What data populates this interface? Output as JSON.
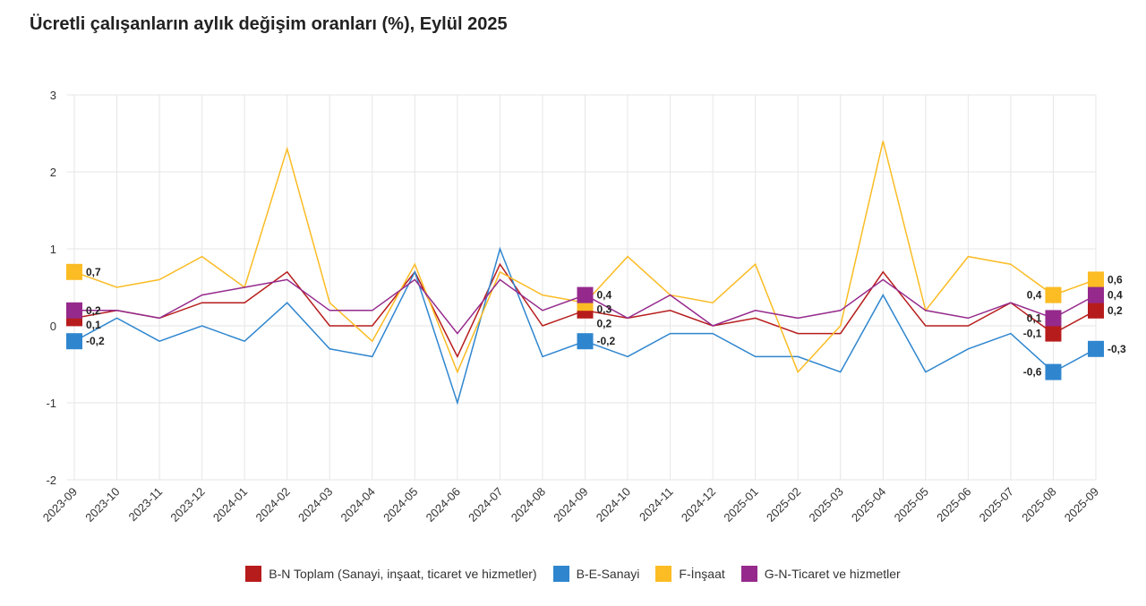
{
  "title": "Ücretli çalışanların aylık değişim oranları (%), Eylül 2025",
  "chart_data": {
    "type": "line",
    "title": "Ücretli çalışanların aylık değişim oranları (%), Eylül 2025",
    "x": [
      "2023-09",
      "2023-10",
      "2023-11",
      "2023-12",
      "2024-01",
      "2024-02",
      "2024-03",
      "2024-04",
      "2024-05",
      "2024-06",
      "2024-07",
      "2024-08",
      "2024-09",
      "2024-10",
      "2024-11",
      "2024-12",
      "2025-01",
      "2025-02",
      "2025-03",
      "2025-04",
      "2025-05",
      "2025-06",
      "2025-07",
      "2025-08",
      "2025-09"
    ],
    "ylim": [
      -2,
      3
    ],
    "yticks": [
      -2,
      -1,
      0,
      1,
      2,
      3
    ],
    "grid": true,
    "legend": "bottom",
    "labeled_points": [
      "2023-09",
      "2024-09",
      "2025-08",
      "2025-09"
    ],
    "series": [
      {
        "name": "B-N Toplam (Sanayi, inşaat, ticaret ve hizmetler)",
        "color": "#b71c1c",
        "values": [
          0.1,
          0.2,
          0.1,
          0.3,
          0.3,
          0.7,
          0,
          0,
          0.7,
          -0.4,
          0.8,
          0,
          0.2,
          0.1,
          0.2,
          0,
          0.1,
          -0.1,
          -0.1,
          0.7,
          0,
          0,
          0.3,
          -0.1,
          0.2
        ]
      },
      {
        "name": "B-E-Sanayi",
        "color": "#2f86cf",
        "values": [
          -0.2,
          0.1,
          -0.2,
          0,
          -0.2,
          0.3,
          -0.3,
          -0.4,
          0.7,
          -1.0,
          1.0,
          -0.4,
          -0.2,
          -0.4,
          -0.1,
          -0.1,
          -0.4,
          -0.4,
          -0.6,
          0.4,
          -0.6,
          -0.3,
          -0.1,
          -0.6,
          -0.3
        ]
      },
      {
        "name": "F-İnşaat",
        "color": "#fbbc24",
        "values": [
          0.7,
          0.5,
          0.6,
          0.9,
          0.5,
          2.3,
          0.3,
          -0.2,
          0.8,
          -0.6,
          0.7,
          0.4,
          0.3,
          0.9,
          0.4,
          0.3,
          0.8,
          -0.6,
          0,
          2.4,
          0.2,
          0.9,
          0.8,
          0.4,
          0.6
        ]
      },
      {
        "name": "G-N-Ticaret ve hizmetler",
        "color": "#952a8c",
        "values": [
          0.2,
          0.2,
          0.1,
          0.4,
          0.5,
          0.6,
          0.2,
          0.2,
          0.6,
          -0.1,
          0.6,
          0.2,
          0.4,
          0.1,
          0.4,
          0,
          0.2,
          0.1,
          0.2,
          0.6,
          0.2,
          0.1,
          0.3,
          0.1,
          0.4
        ]
      }
    ]
  }
}
